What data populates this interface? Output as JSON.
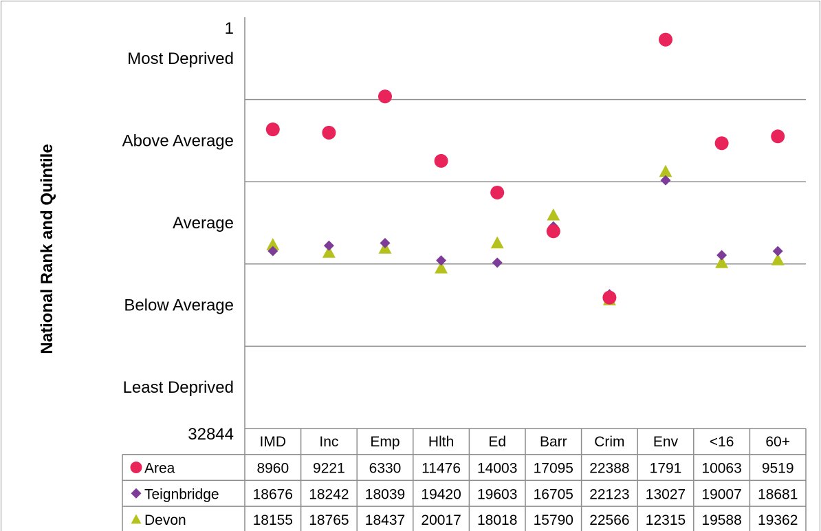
{
  "chart_data": {
    "type": "scatter",
    "title": "",
    "ylabel": "National Rank and Quintile",
    "ylim": [
      1,
      32844
    ],
    "y_inverted": true,
    "y_ticks": [
      {
        "value": 1,
        "label": "1"
      },
      {
        "value": 32844,
        "label": "32844"
      }
    ],
    "quintile_labels": [
      "Most Deprived",
      "Above Average",
      "Average",
      "Below Average",
      "Least Deprived"
    ],
    "quintile_boundaries": [
      6569,
      13138,
      19707,
      26276
    ],
    "categories": [
      "IMD",
      "Inc",
      "Emp",
      "Hlth",
      "Ed",
      "Barr",
      "Crim",
      "Env",
      "<16",
      "60+"
    ],
    "series": [
      {
        "name": "Area",
        "marker": "circle",
        "color": "#e8245a",
        "values": [
          8960,
          9221,
          6330,
          11476,
          14003,
          17095,
          22388,
          1791,
          10063,
          9519
        ]
      },
      {
        "name": "Teignbridge",
        "marker": "diamond",
        "color": "#7d3c98",
        "values": [
          18676,
          18242,
          18039,
          19420,
          19603,
          16705,
          22123,
          13027,
          19007,
          18681
        ]
      },
      {
        "name": "Devon",
        "marker": "triangle",
        "color": "#b5c21e",
        "values": [
          18155,
          18765,
          18437,
          20017,
          18018,
          15790,
          22566,
          12315,
          19588,
          19362
        ]
      }
    ],
    "grid": true,
    "legend": "data-table"
  }
}
